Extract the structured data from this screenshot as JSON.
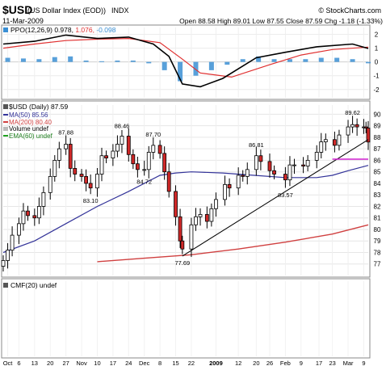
{
  "header": {
    "symbol": "$USD",
    "name": "(US Dollar Index (EOD))",
    "exchange": "INDX",
    "source": "© StockCharts.com",
    "date": "11-Mar-2009",
    "ohlc": "Open 88.58  High 89.01  Low 87.55  Close 87.59  Chg -1.18 (-1.33%)"
  },
  "ppo_panel": {
    "label_main": "PPO(12,26,9) 0.978, ",
    "label_signal": "1.076, ",
    "label_hist": "-0.098",
    "ticks": [
      "2",
      "1",
      "0",
      "-1",
      "-2"
    ]
  },
  "price_panel": {
    "label_title": "$USD (Daily) 87.59",
    "legend": [
      "MA(50) 85.56",
      "MA(200) 80.40",
      "Volume undef",
      "EMA(60) undef"
    ],
    "ticks": [
      "90",
      "89",
      "88",
      "87",
      "86",
      "85",
      "84",
      "83",
      "82",
      "81",
      "80",
      "79",
      "78",
      "77"
    ]
  },
  "cmf_panel": {
    "label": "CMF(20) undef"
  },
  "x_axis": [
    "Oct",
    "6",
    "13",
    "20",
    "27",
    "Nov",
    "10",
    "17",
    "24",
    "Dec",
    "8",
    "15",
    "22",
    "2009",
    "12",
    "20",
    "26",
    "Feb",
    "9",
    "17",
    "23",
    "Mar",
    "9"
  ],
  "chart_data": {
    "type": "candlestick",
    "x_range": [
      "2008-09-29",
      "2009-03-11"
    ],
    "y_range": [
      76,
      90.8
    ],
    "annotations": [
      {
        "date": "2008-10-27",
        "value": 87.88,
        "label": "87.88"
      },
      {
        "date": "2008-11-07",
        "value": 83.1,
        "label": "83.10"
      },
      {
        "date": "2008-11-21",
        "value": 88.46,
        "label": "88.46"
      },
      {
        "date": "2008-12-01",
        "value": 84.72,
        "label": "84.72"
      },
      {
        "date": "2008-12-05",
        "value": 87.7,
        "label": "87.70"
      },
      {
        "date": "2008-12-18",
        "value": 77.69,
        "label": "77.69"
      },
      {
        "date": "2009-01-20",
        "value": 86.81,
        "label": "86.81"
      },
      {
        "date": "2009-02-02",
        "value": 83.57,
        "label": "83.57"
      },
      {
        "date": "2009-03-04",
        "value": 89.62,
        "label": "89.62"
      }
    ],
    "price_close": [
      [
        "2008-09-29",
        77.3
      ],
      [
        "2008-10-01",
        78.2
      ],
      [
        "2008-10-03",
        79.5
      ],
      [
        "2008-10-06",
        80.5
      ],
      [
        "2008-10-08",
        81.6
      ],
      [
        "2008-10-10",
        81.2
      ],
      [
        "2008-10-13",
        81.0
      ],
      [
        "2008-10-15",
        82.0
      ],
      [
        "2008-10-17",
        83.2
      ],
      [
        "2008-10-20",
        84.6
      ],
      [
        "2008-10-22",
        86.0
      ],
      [
        "2008-10-24",
        87.0
      ],
      [
        "2008-10-27",
        87.4
      ],
      [
        "2008-10-29",
        85.3
      ],
      [
        "2008-10-31",
        84.8
      ],
      [
        "2008-11-03",
        84.6
      ],
      [
        "2008-11-05",
        84.0
      ],
      [
        "2008-11-07",
        83.6
      ],
      [
        "2008-11-10",
        84.8
      ],
      [
        "2008-11-12",
        86.4
      ],
      [
        "2008-11-14",
        86.2
      ],
      [
        "2008-11-17",
        86.8
      ],
      [
        "2008-11-19",
        87.4
      ],
      [
        "2008-11-21",
        88.1
      ],
      [
        "2008-11-24",
        86.5
      ],
      [
        "2008-11-26",
        85.7
      ],
      [
        "2008-11-28",
        85.2
      ],
      [
        "2008-12-01",
        85.2
      ],
      [
        "2008-12-03",
        86.7
      ],
      [
        "2008-12-05",
        87.3
      ],
      [
        "2008-12-08",
        86.6
      ],
      [
        "2008-12-10",
        85.0
      ],
      [
        "2008-12-12",
        83.3
      ],
      [
        "2008-12-15",
        81.1
      ],
      [
        "2008-12-17",
        79.0
      ],
      [
        "2008-12-18",
        78.3
      ],
      [
        "2008-12-22",
        80.4
      ],
      [
        "2008-12-24",
        81.1
      ],
      [
        "2008-12-26",
        81.3
      ],
      [
        "2008-12-29",
        80.7
      ],
      [
        "2008-12-31",
        81.8
      ],
      [
        "2009-01-02",
        82.6
      ],
      [
        "2009-01-06",
        83.9
      ],
      [
        "2009-01-08",
        83.6
      ],
      [
        "2009-01-12",
        84.7
      ],
      [
        "2009-01-14",
        84.6
      ],
      [
        "2009-01-16",
        85.2
      ],
      [
        "2009-01-20",
        86.4
      ],
      [
        "2009-01-22",
        85.9
      ],
      [
        "2009-01-26",
        85.1
      ],
      [
        "2009-01-28",
        84.8
      ],
      [
        "2009-02-02",
        84.3
      ],
      [
        "2009-02-04",
        85.6
      ],
      [
        "2009-02-06",
        85.6
      ],
      [
        "2009-02-10",
        85.5
      ],
      [
        "2009-02-12",
        86.0
      ],
      [
        "2009-02-16",
        86.7
      ],
      [
        "2009-02-18",
        87.6
      ],
      [
        "2009-02-20",
        87.8
      ],
      [
        "2009-02-24",
        87.3
      ],
      [
        "2009-02-26",
        88.2
      ],
      [
        "2009-03-02",
        88.9
      ],
      [
        "2009-03-04",
        89.1
      ],
      [
        "2009-03-06",
        88.9
      ],
      [
        "2009-03-09",
        88.9
      ],
      [
        "2009-03-10",
        88.8
      ],
      [
        "2009-03-11",
        87.59
      ]
    ],
    "ma50": [
      [
        "2008-09-29",
        78.0
      ],
      [
        "2008-10-13",
        79.0
      ],
      [
        "2008-10-27",
        80.5
      ],
      [
        "2008-11-10",
        82.0
      ],
      [
        "2008-11-24",
        83.3
      ],
      [
        "2008-12-08",
        84.7
      ],
      [
        "2008-12-15",
        84.9
      ],
      [
        "2008-12-22",
        85.0
      ],
      [
        "2009-01-05",
        84.9
      ],
      [
        "2009-01-19",
        84.7
      ],
      [
        "2009-02-02",
        84.5
      ],
      [
        "2009-02-16",
        84.5
      ],
      [
        "2009-02-23",
        84.7
      ],
      [
        "2009-03-02",
        85.1
      ],
      [
        "2009-03-11",
        85.56
      ]
    ],
    "ma200": [
      [
        "2008-11-10",
        77.2
      ],
      [
        "2008-12-01",
        77.5
      ],
      [
        "2008-12-22",
        77.8
      ],
      [
        "2009-01-12",
        78.3
      ],
      [
        "2009-02-02",
        78.9
      ],
      [
        "2009-02-23",
        79.6
      ],
      [
        "2009-03-11",
        80.4
      ]
    ],
    "trendline": [
      [
        "2008-12-18",
        77.69
      ],
      [
        "2009-03-11",
        87.8
      ]
    ],
    "support_line": [
      [
        "2009-02-23",
        86.1
      ],
      [
        "2009-03-11",
        86.1
      ]
    ],
    "ppo_y_range": [
      -2.6,
      2.5
    ],
    "ppo": [
      [
        "2008-09-29",
        1.3
      ],
      [
        "2008-10-13",
        1.5
      ],
      [
        "2008-10-27",
        1.95
      ],
      [
        "2008-11-10",
        1.7
      ],
      [
        "2008-11-24",
        1.8
      ],
      [
        "2008-12-05",
        1.3
      ],
      [
        "2008-12-12",
        0.4
      ],
      [
        "2008-12-18",
        -1.6
      ],
      [
        "2008-12-26",
        -1.8
      ],
      [
        "2009-01-05",
        -1.2
      ],
      [
        "2009-01-20",
        0.3
      ],
      [
        "2009-02-02",
        0.7
      ],
      [
        "2009-02-16",
        1.1
      ],
      [
        "2009-03-04",
        1.3
      ],
      [
        "2009-03-11",
        0.978
      ]
    ],
    "ppo_signal": [
      [
        "2008-09-29",
        1.0
      ],
      [
        "2008-10-13",
        1.3
      ],
      [
        "2008-10-27",
        1.55
      ],
      [
        "2008-11-10",
        1.65
      ],
      [
        "2008-11-24",
        1.7
      ],
      [
        "2008-12-08",
        1.4
      ],
      [
        "2008-12-18",
        0.2
      ],
      [
        "2008-12-26",
        -0.8
      ],
      [
        "2009-01-09",
        -1.1
      ],
      [
        "2009-01-26",
        -0.2
      ],
      [
        "2009-02-09",
        0.5
      ],
      [
        "2009-02-23",
        0.9
      ],
      [
        "2009-03-11",
        1.076
      ]
    ],
    "ppo_histogram": [
      [
        "2008-10-01",
        0.3
      ],
      [
        "2008-10-08",
        0.25
      ],
      [
        "2008-10-15",
        0.2
      ],
      [
        "2008-10-22",
        0.35
      ],
      [
        "2008-10-29",
        0.4
      ],
      [
        "2008-11-05",
        0.1
      ],
      [
        "2008-11-12",
        0.05
      ],
      [
        "2008-11-19",
        0.1
      ],
      [
        "2008-11-26",
        0.1
      ],
      [
        "2008-12-03",
        -0.1
      ],
      [
        "2008-12-10",
        -0.6
      ],
      [
        "2008-12-17",
        -1.4
      ],
      [
        "2008-12-24",
        -1.0
      ],
      [
        "2008-12-31",
        -0.6
      ],
      [
        "2009-01-07",
        -0.2
      ],
      [
        "2009-01-14",
        0.2
      ],
      [
        "2009-01-21",
        0.4
      ],
      [
        "2009-01-28",
        0.2
      ],
      [
        "2009-02-04",
        0.2
      ],
      [
        "2009-02-11",
        0.2
      ],
      [
        "2009-02-18",
        0.3
      ],
      [
        "2009-02-25",
        0.3
      ],
      [
        "2009-03-04",
        0.2
      ],
      [
        "2009-03-11",
        -0.098
      ]
    ]
  }
}
